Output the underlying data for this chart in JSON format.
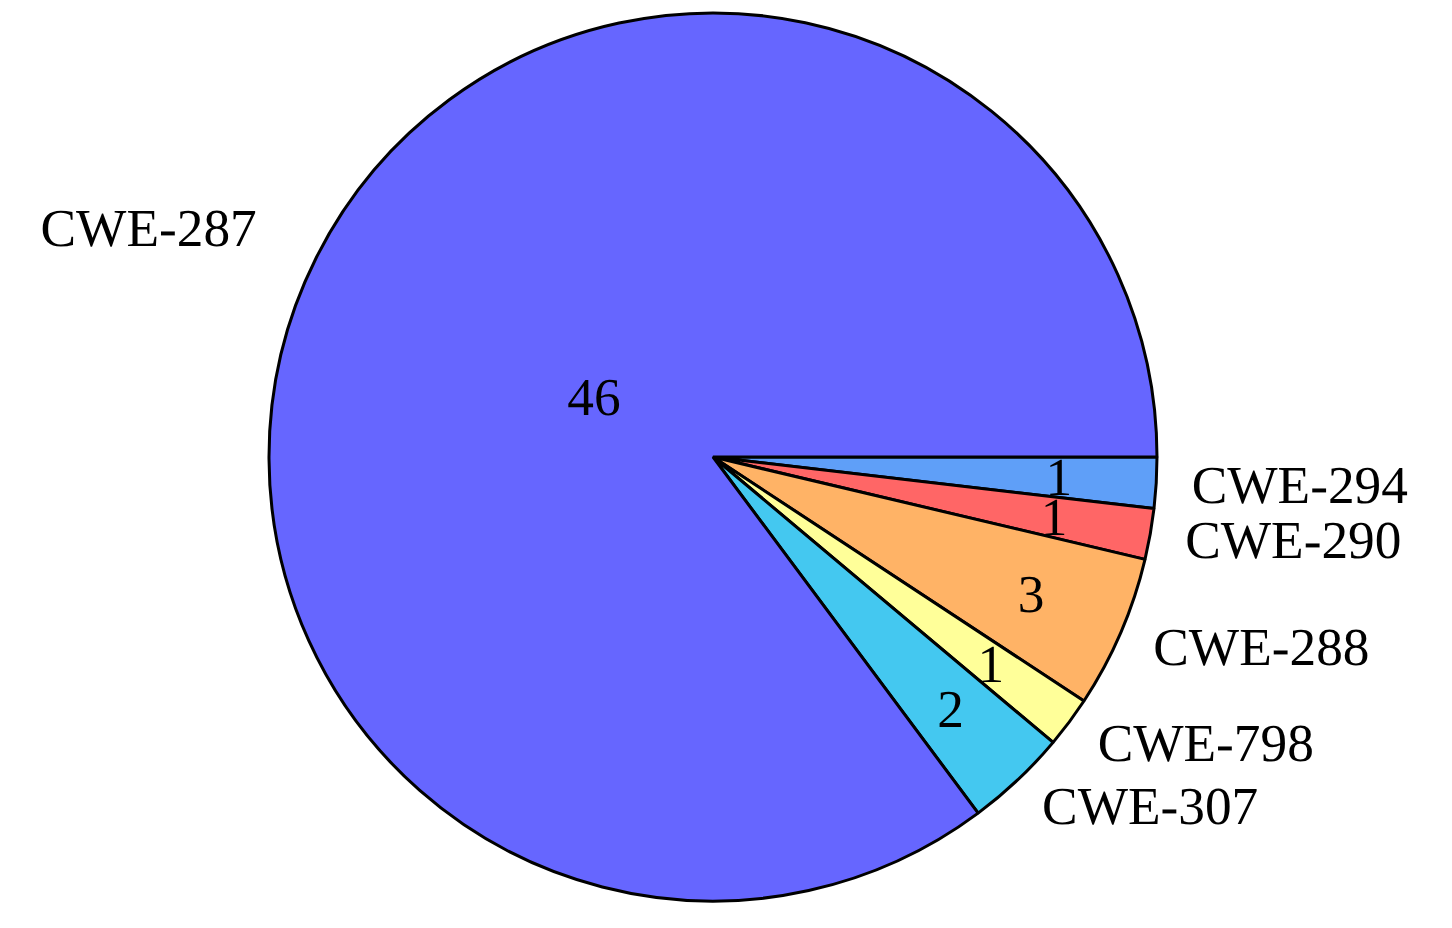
{
  "chart_data": {
    "type": "pie",
    "categories": [
      "CWE-294",
      "CWE-290",
      "CWE-288",
      "CWE-798",
      "CWE-307",
      "CWE-287"
    ],
    "values": [
      1,
      1,
      3,
      1,
      2,
      46
    ],
    "colors": [
      "#5f9ff8",
      "#ff6666",
      "#ffb366",
      "#ffff99",
      "#44c8f0",
      "#6666ff"
    ],
    "data_labels": true
  }
}
